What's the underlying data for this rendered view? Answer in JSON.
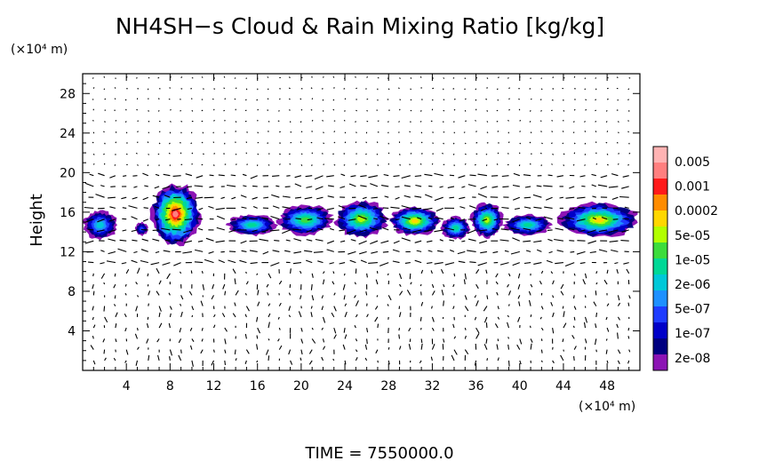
{
  "chart_data": {
    "type": "heatmap",
    "title": "NH4SH−s Cloud & Rain Mixing Ratio [kg/kg]",
    "ylabel": "Height",
    "y_unit": "(×10⁴ m)",
    "x_unit": "(×10⁴ m)",
    "x_ticks": [
      "4",
      "8",
      "12",
      "16",
      "20",
      "24",
      "28",
      "32",
      "36",
      "40",
      "44",
      "48"
    ],
    "y_ticks": [
      "4",
      "8",
      "12",
      "16",
      "20",
      "24",
      "28"
    ],
    "xlim": [
      0,
      51
    ],
    "ylim": [
      0,
      30
    ],
    "colorbar": {
      "labels": [
        "0.005",
        "0.001",
        "0.0002",
        "5e-05",
        "1e-05",
        "2e-06",
        "5e-07",
        "1e-07",
        "2e-08"
      ],
      "colors": [
        "#ffb3b3",
        "#ff7f7f",
        "#ff1a1a",
        "#ff8c00",
        "#ffd700",
        "#b2ff00",
        "#3cdc3c",
        "#00d896",
        "#00c8d8",
        "#1e90ff",
        "#1e3cff",
        "#0000c8",
        "#000080",
        "#8c14b4"
      ]
    },
    "cloud_regions": [
      {
        "x0": 0.0,
        "x1": 3.2,
        "y0": 13.2,
        "y1": 16.2,
        "level": 5
      },
      {
        "x0": 4.8,
        "x1": 6.0,
        "y0": 13.6,
        "y1": 15.0,
        "level": 3
      },
      {
        "x0": 6.2,
        "x1": 10.8,
        "y0": 12.6,
        "y1": 19.0,
        "level": 12
      },
      {
        "x0": 13.2,
        "x1": 17.8,
        "y0": 13.6,
        "y1": 15.8,
        "level": 6
      },
      {
        "x0": 17.8,
        "x1": 23.0,
        "y0": 13.6,
        "y1": 16.8,
        "level": 7
      },
      {
        "x0": 23.0,
        "x1": 28.0,
        "y0": 13.4,
        "y1": 17.2,
        "level": 8
      },
      {
        "x0": 28.0,
        "x1": 32.8,
        "y0": 13.6,
        "y1": 16.6,
        "level": 9
      },
      {
        "x0": 32.8,
        "x1": 35.5,
        "y0": 13.2,
        "y1": 15.6,
        "level": 6
      },
      {
        "x0": 35.5,
        "x1": 38.5,
        "y0": 13.4,
        "y1": 17.0,
        "level": 8
      },
      {
        "x0": 38.5,
        "x1": 43.0,
        "y0": 13.6,
        "y1": 15.8,
        "level": 6
      },
      {
        "x0": 43.5,
        "x1": 51.0,
        "y0": 13.4,
        "y1": 17.0,
        "level": 9
      }
    ]
  },
  "footer": "TIME  =  7550000.0"
}
